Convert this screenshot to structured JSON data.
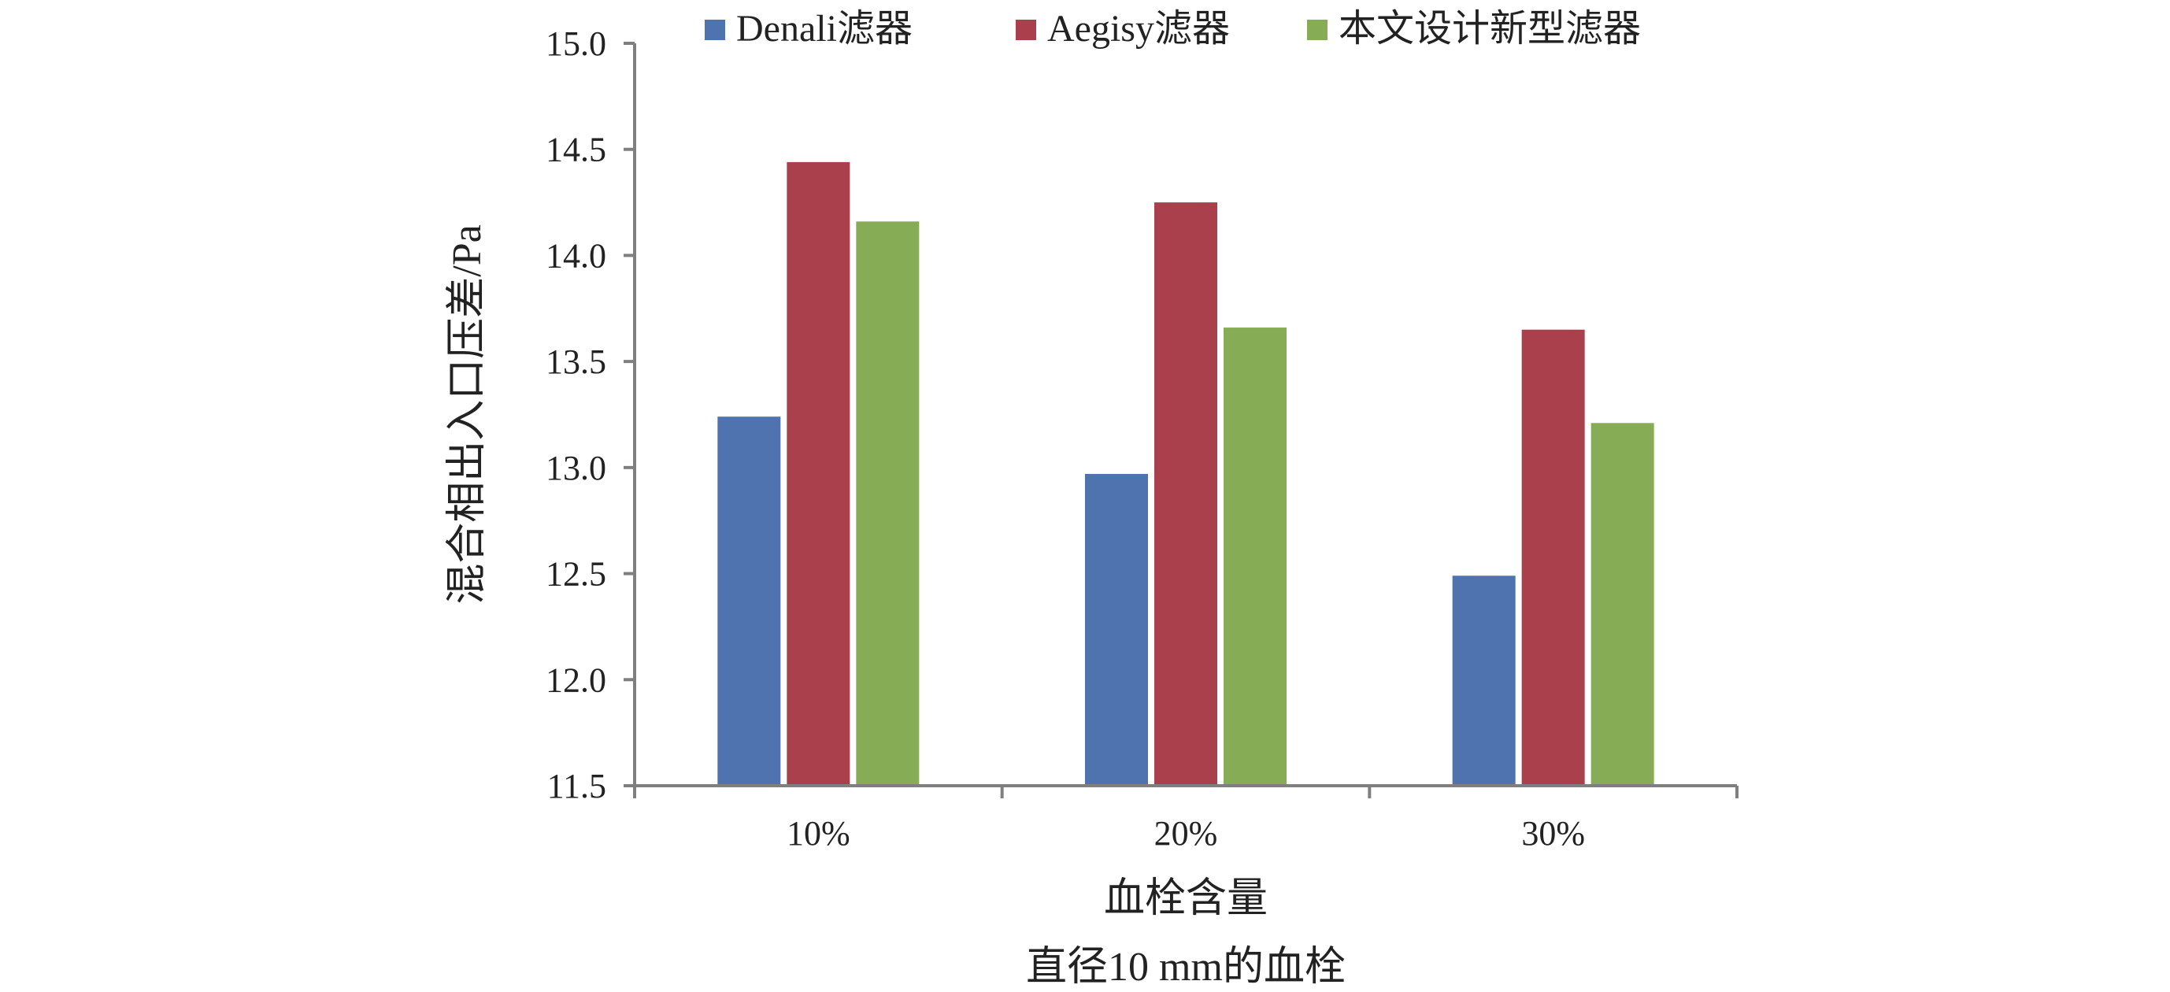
{
  "chart_data": {
    "type": "bar",
    "title": "",
    "caption": "直径10 mm的血栓",
    "xlabel": "血栓含量",
    "ylabel": "混合相出入口压差/Pa",
    "categories": [
      "10%",
      "20%",
      "30%"
    ],
    "series": [
      {
        "name": "Denali滤器",
        "color": "#4E73AE",
        "values": [
          13.24,
          12.97,
          12.49
        ]
      },
      {
        "name": "Aegisy滤器",
        "color": "#A9404C",
        "values": [
          14.44,
          14.25,
          13.65
        ]
      },
      {
        "name": "本文设计新型滤器",
        "color": "#86AD55",
        "values": [
          14.16,
          13.66,
          13.21
        ]
      }
    ],
    "ylim": [
      11.5,
      15.0
    ],
    "yticks": [
      "11.5",
      "12.0",
      "12.5",
      "13.0",
      "13.5",
      "14.0",
      "14.5",
      "15.0"
    ],
    "grid": false,
    "legend_position": "top"
  }
}
